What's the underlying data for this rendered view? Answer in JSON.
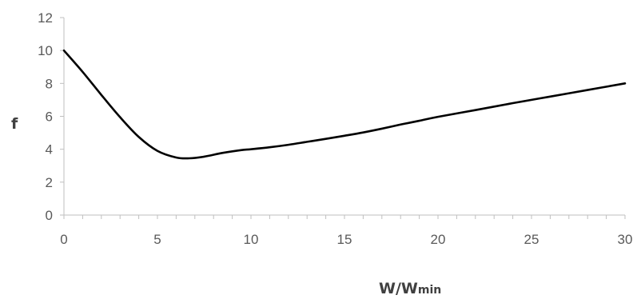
{
  "chart_data": {
    "type": "line",
    "title": "",
    "xlabel": {
      "main": "W/W",
      "subscript": "min"
    },
    "ylabel": "f",
    "xlim": [
      0,
      30
    ],
    "ylim": [
      0,
      12
    ],
    "x_ticks": [
      "0",
      "5",
      "10",
      "15",
      "20",
      "25",
      "30"
    ],
    "y_ticks": [
      "0",
      "2",
      "4",
      "6",
      "8",
      "10",
      "12"
    ],
    "grid": false,
    "legend": "none",
    "line_color": "#000000",
    "series": [
      {
        "x": [
          0,
          1,
          2,
          3,
          4,
          5,
          6,
          6.7,
          7.5,
          8.5,
          9.5,
          10,
          11,
          12,
          13,
          14,
          15,
          16,
          17,
          18,
          19,
          20,
          22,
          24,
          26,
          28,
          30
        ],
        "y": [
          10,
          8.7,
          7.3,
          5.95,
          4.75,
          3.9,
          3.5,
          3.45,
          3.55,
          3.78,
          3.95,
          4.0,
          4.12,
          4.27,
          4.45,
          4.63,
          4.82,
          5.02,
          5.25,
          5.5,
          5.73,
          5.97,
          6.38,
          6.8,
          7.2,
          7.6,
          8.0
        ]
      }
    ]
  }
}
